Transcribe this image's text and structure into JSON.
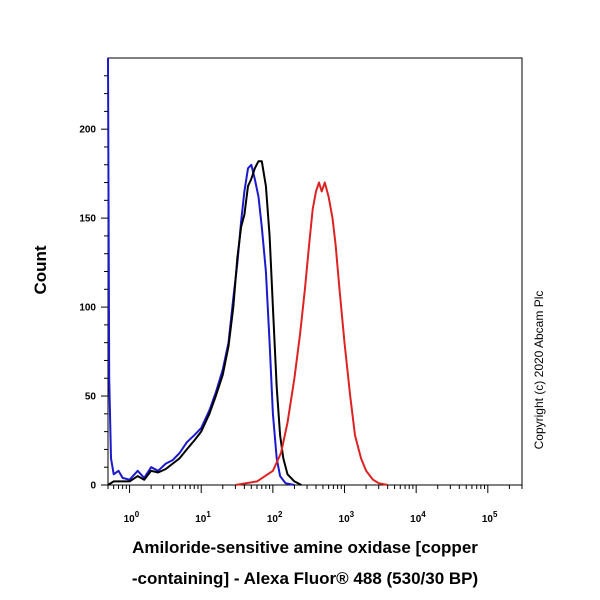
{
  "chart_data": {
    "type": "line",
    "ylabel": "Count",
    "xlabel_lines": [
      "Amiloride-sensitive amine oxidase [copper",
      "-containing] -  Alexa Fluor® 488 (530/30 BP)"
    ],
    "copyright": "Copyright (c) 2020 Abcam Plc",
    "x_scale": "log",
    "xlim": [
      0.5,
      300000
    ],
    "ylim": [
      0,
      240
    ],
    "grid": false,
    "x_ticks": [
      {
        "base": "10",
        "exp": "0",
        "value": 1
      },
      {
        "base": "10",
        "exp": "1",
        "value": 10
      },
      {
        "base": "10",
        "exp": "2",
        "value": 100
      },
      {
        "base": "10",
        "exp": "3",
        "value": 1000
      },
      {
        "base": "10",
        "exp": "4",
        "value": 10000
      },
      {
        "base": "10",
        "exp": "5",
        "value": 100000
      }
    ],
    "y_ticks": [
      0,
      50,
      100,
      150,
      200
    ],
    "series": [
      {
        "color": "#1a1acc",
        "points": [
          [
            0.5,
            240
          ],
          [
            0.52,
            60
          ],
          [
            0.55,
            15
          ],
          [
            0.6,
            6
          ],
          [
            0.7,
            8
          ],
          [
            0.8,
            4
          ],
          [
            1.0,
            3
          ],
          [
            1.3,
            8
          ],
          [
            1.6,
            4
          ],
          [
            2.0,
            10
          ],
          [
            2.5,
            8
          ],
          [
            3.2,
            12
          ],
          [
            4.0,
            14
          ],
          [
            5.0,
            18
          ],
          [
            6.3,
            24
          ],
          [
            8.0,
            28
          ],
          [
            10,
            32
          ],
          [
            13,
            42
          ],
          [
            16,
            52
          ],
          [
            20,
            65
          ],
          [
            24,
            80
          ],
          [
            28,
            105
          ],
          [
            32,
            125
          ],
          [
            36,
            148
          ],
          [
            40,
            165
          ],
          [
            45,
            178
          ],
          [
            50,
            180
          ],
          [
            56,
            172
          ],
          [
            63,
            162
          ],
          [
            70,
            145
          ],
          [
            80,
            120
          ],
          [
            90,
            80
          ],
          [
            100,
            40
          ],
          [
            113,
            15
          ],
          [
            126,
            5
          ],
          [
            150,
            1
          ],
          [
            200,
            0
          ]
        ]
      },
      {
        "color": "#000000",
        "points": [
          [
            0.5,
            0
          ],
          [
            0.6,
            2
          ],
          [
            1.0,
            2
          ],
          [
            1.3,
            5
          ],
          [
            1.6,
            3
          ],
          [
            2.0,
            8
          ],
          [
            2.5,
            7
          ],
          [
            3.2,
            9
          ],
          [
            4.0,
            12
          ],
          [
            5.0,
            15
          ],
          [
            6.3,
            20
          ],
          [
            8.0,
            25
          ],
          [
            10,
            30
          ],
          [
            13,
            40
          ],
          [
            16,
            50
          ],
          [
            20,
            62
          ],
          [
            24,
            78
          ],
          [
            28,
            100
          ],
          [
            32,
            128
          ],
          [
            36,
            145
          ],
          [
            40,
            152
          ],
          [
            45,
            168
          ],
          [
            50,
            172
          ],
          [
            56,
            178
          ],
          [
            63,
            182
          ],
          [
            70,
            182
          ],
          [
            80,
            168
          ],
          [
            90,
            140
          ],
          [
            100,
            100
          ],
          [
            113,
            55
          ],
          [
            126,
            28
          ],
          [
            140,
            15
          ],
          [
            160,
            6
          ],
          [
            200,
            2
          ],
          [
            250,
            0
          ]
        ]
      },
      {
        "color": "#dd2222",
        "points": [
          [
            30,
            0
          ],
          [
            60,
            2
          ],
          [
            100,
            8
          ],
          [
            130,
            18
          ],
          [
            160,
            35
          ],
          [
            200,
            60
          ],
          [
            240,
            85
          ],
          [
            280,
            110
          ],
          [
            320,
            135
          ],
          [
            360,
            155
          ],
          [
            400,
            165
          ],
          [
            440,
            170
          ],
          [
            480,
            165
          ],
          [
            530,
            170
          ],
          [
            600,
            162
          ],
          [
            680,
            150
          ],
          [
            750,
            135
          ],
          [
            850,
            110
          ],
          [
            1000,
            80
          ],
          [
            1200,
            50
          ],
          [
            1400,
            28
          ],
          [
            1700,
            15
          ],
          [
            2000,
            8
          ],
          [
            2500,
            3
          ],
          [
            3000,
            1
          ],
          [
            4000,
            0
          ]
        ]
      }
    ]
  }
}
